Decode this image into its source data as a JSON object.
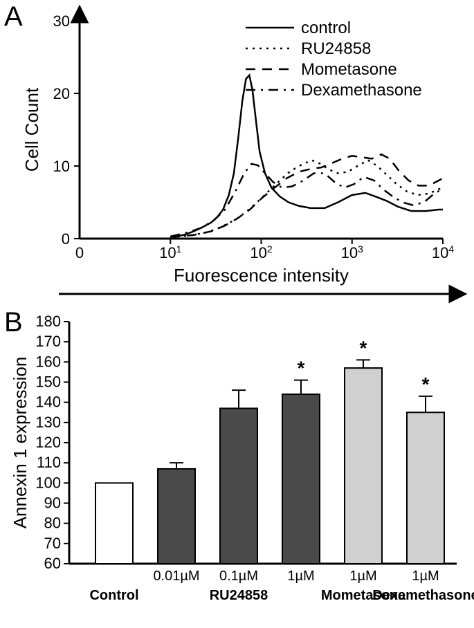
{
  "panelA": {
    "label": "A",
    "type": "line",
    "title": null,
    "xlabel": "Fuorescence intensity",
    "ylabel": "Cell Count",
    "xscale": "log",
    "xlim": [
      1,
      10000
    ],
    "xticks": [
      10,
      100,
      1000,
      10000
    ],
    "xtick_labels": [
      "10¹",
      "10²",
      "10³",
      "10⁴"
    ],
    "xtick_origin": "0",
    "ylim": [
      0,
      30
    ],
    "yticks": [
      0,
      10,
      20,
      30
    ],
    "background_color": "#ffffff",
    "axis_color": "#000000",
    "line_color": "#000000",
    "line_width": 2.5,
    "legend": {
      "items": [
        "control",
        "RU24858",
        "Mometasone",
        "Dexamethasone"
      ],
      "styles": [
        "solid",
        "dotted",
        "dashed",
        "dashdot"
      ]
    },
    "series": {
      "control": {
        "style": "solid",
        "points": [
          [
            10,
            0.2
          ],
          [
            14,
            0.5
          ],
          [
            18,
            1
          ],
          [
            22,
            1.5
          ],
          [
            28,
            2.2
          ],
          [
            33,
            3
          ],
          [
            38,
            4
          ],
          [
            44,
            6
          ],
          [
            50,
            9
          ],
          [
            56,
            14
          ],
          [
            62,
            19
          ],
          [
            68,
            22
          ],
          [
            74,
            22.5
          ],
          [
            80,
            20.5
          ],
          [
            88,
            16
          ],
          [
            96,
            12
          ],
          [
            110,
            9
          ],
          [
            130,
            7
          ],
          [
            160,
            5.8
          ],
          [
            200,
            5
          ],
          [
            260,
            4.5
          ],
          [
            350,
            4.2
          ],
          [
            500,
            4.2
          ],
          [
            700,
            5
          ],
          [
            1000,
            6
          ],
          [
            1400,
            6.3
          ],
          [
            1800,
            5.8
          ],
          [
            2400,
            5.2
          ],
          [
            3200,
            4.4
          ],
          [
            4500,
            3.8
          ],
          [
            6500,
            3.8
          ],
          [
            9000,
            4
          ],
          [
            10000,
            4
          ]
        ]
      },
      "RU24858": {
        "style": "dotted",
        "points": [
          [
            10,
            0.2
          ],
          [
            16,
            0.4
          ],
          [
            24,
            0.8
          ],
          [
            32,
            1.3
          ],
          [
            42,
            2
          ],
          [
            55,
            2.8
          ],
          [
            70,
            3.8
          ],
          [
            90,
            5
          ],
          [
            120,
            6.5
          ],
          [
            160,
            8
          ],
          [
            210,
            9.3
          ],
          [
            280,
            10.2
          ],
          [
            360,
            10.8
          ],
          [
            450,
            10.3
          ],
          [
            560,
            9.5
          ],
          [
            700,
            9
          ],
          [
            900,
            9.2
          ],
          [
            1150,
            10
          ],
          [
            1500,
            10.8
          ],
          [
            1900,
            10
          ],
          [
            2400,
            8.8
          ],
          [
            3100,
            7.5
          ],
          [
            4000,
            6.5
          ],
          [
            5300,
            6
          ],
          [
            7000,
            6.2
          ],
          [
            9000,
            6.8
          ],
          [
            10000,
            7
          ]
        ]
      },
      "Mometasone": {
        "style": "dashed",
        "points": [
          [
            10,
            0.2
          ],
          [
            18,
            0.5
          ],
          [
            28,
            1
          ],
          [
            40,
            1.8
          ],
          [
            55,
            2.8
          ],
          [
            75,
            4
          ],
          [
            100,
            5.5
          ],
          [
            140,
            7
          ],
          [
            190,
            8.3
          ],
          [
            260,
            9.2
          ],
          [
            350,
            9.6
          ],
          [
            460,
            9.8
          ],
          [
            600,
            10.4
          ],
          [
            780,
            11
          ],
          [
            1000,
            11.4
          ],
          [
            1300,
            11.2
          ],
          [
            1650,
            11
          ],
          [
            2100,
            11.6
          ],
          [
            2600,
            11
          ],
          [
            3300,
            9.3
          ],
          [
            4200,
            8
          ],
          [
            5400,
            7.3
          ],
          [
            7000,
            7.3
          ],
          [
            9000,
            8
          ],
          [
            10000,
            8.3
          ]
        ]
      },
      "Dexamethasone": {
        "style": "dashdot",
        "points": [
          [
            10,
            0.3
          ],
          [
            15,
            0.8
          ],
          [
            22,
            1.5
          ],
          [
            30,
            2.5
          ],
          [
            40,
            4
          ],
          [
            52,
            6.5
          ],
          [
            65,
            9
          ],
          [
            78,
            10.3
          ],
          [
            92,
            10.1
          ],
          [
            110,
            9
          ],
          [
            135,
            7.8
          ],
          [
            170,
            7
          ],
          [
            220,
            7.2
          ],
          [
            290,
            8
          ],
          [
            380,
            9
          ],
          [
            500,
            9
          ],
          [
            640,
            7.8
          ],
          [
            820,
            7
          ],
          [
            1050,
            7.5
          ],
          [
            1350,
            8.5
          ],
          [
            1750,
            8
          ],
          [
            2200,
            6.8
          ],
          [
            2800,
            5.8
          ],
          [
            3600,
            5
          ],
          [
            4700,
            4.6
          ],
          [
            6200,
            5
          ],
          [
            8200,
            6.3
          ],
          [
            10000,
            6.8
          ]
        ]
      }
    }
  },
  "panelB": {
    "label": "B",
    "type": "bar",
    "ylabel": "Annexin 1 expression",
    "ylim": [
      60,
      180
    ],
    "yticks": [
      60,
      70,
      80,
      90,
      100,
      110,
      120,
      130,
      140,
      150,
      160,
      170,
      180
    ],
    "background_color": "#ffffff",
    "axis_color": "#000000",
    "bar_border_color": "#000000",
    "bar_border_width": 2,
    "bar_width": 0.6,
    "bars": [
      {
        "group": "Control",
        "dose": "",
        "value": 100,
        "err": 0,
        "sig": false,
        "fill": "#ffffff"
      },
      {
        "group": "RU24858",
        "dose": "0.01µM",
        "value": 107,
        "err": 3,
        "sig": false,
        "fill": "#4a4a4a"
      },
      {
        "group": "RU24858",
        "dose": "0.1µM",
        "value": 137,
        "err": 9,
        "sig": false,
        "fill": "#4a4a4a"
      },
      {
        "group": "RU24858",
        "dose": "1µM",
        "value": 144,
        "err": 7,
        "sig": true,
        "fill": "#4a4a4a"
      },
      {
        "group": "Mometasone",
        "dose": "1µM",
        "value": 157,
        "err": 4,
        "sig": true,
        "fill": "#d0d0d0"
      },
      {
        "group": "Dexamethasone",
        "dose": "1µM",
        "value": 135,
        "err": 8,
        "sig": true,
        "fill": "#d0d0d0"
      }
    ],
    "group_labels": [
      "Control",
      "RU24858",
      "Mometasone",
      "Dexamethasone"
    ]
  },
  "arrow": {
    "length": 150
  }
}
